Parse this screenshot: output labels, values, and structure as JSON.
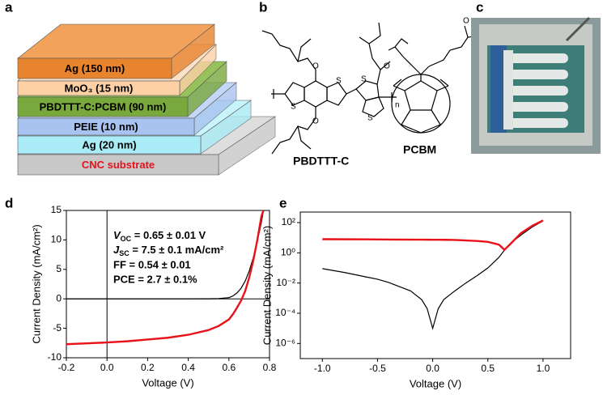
{
  "panel_labels": [
    "a",
    "b",
    "c",
    "d",
    "e"
  ],
  "layers": [
    {
      "label": "Ag (150 nm)",
      "color": "#e8832e",
      "top": "#f2a25a"
    },
    {
      "label": "MoO₃ (15 nm)",
      "color": "#fdd0a6",
      "top": "#fde2c8"
    },
    {
      "label": "PBDTTT-C:PCBM (90 nm)",
      "color": "#79a83c",
      "top": "#95c25a"
    },
    {
      "label": "PEIE (10 nm)",
      "color": "#a8c3f0",
      "top": "#c4d7f6"
    },
    {
      "label": "Ag (20 nm)",
      "color": "#a9ebf6",
      "top": "#c9f4fb"
    },
    {
      "label": "CNC substrate",
      "color": "#c8c8c8",
      "top": "#dedede",
      "text_color": "#e8121b"
    }
  ],
  "molecules": {
    "polymer": "PBDTTT-C",
    "fullerene": "PCBM",
    "repeat": "n",
    "atoms": [
      "O",
      "O",
      "O",
      "O",
      "O",
      "S",
      "S",
      "S",
      "S"
    ]
  },
  "chart_data": [
    {
      "type": "line",
      "ylabel": "Current Density (mA/cm²)",
      "xlabel": "Voltage (V)",
      "xlim": [
        -0.2,
        0.8
      ],
      "xticks": [
        -0.2,
        {
          "value": 0,
          "label": "0.0"
        },
        0.2,
        0.4,
        0.6,
        0.8
      ],
      "ylim": [
        -10,
        15
      ],
      "yticks": [
        -10,
        -5,
        0,
        5,
        10,
        15
      ],
      "zero_lines": true,
      "annotations": [
        {
          "main": "V",
          "sub": "OC",
          "rest": " = 0.65 ± 0.01 V"
        },
        {
          "main": "J",
          "sub": "SC",
          "rest": " = 7.5 ± 0.1 mA/cm²"
        },
        "FF = 0.54 ± 0.01",
        "PCE = 2.7 ± 0.1%"
      ],
      "x": [
        -0.2,
        -0.1,
        0,
        0.1,
        0.2,
        0.3,
        0.4,
        0.5,
        0.55,
        0.6,
        0.62,
        0.64,
        0.66,
        0.68,
        0.7,
        0.72,
        0.74,
        0.76,
        0.77
      ],
      "series": [
        {
          "color": "#000000",
          "width": 1.2,
          "values": [
            0,
            0,
            0,
            0,
            0,
            0,
            0,
            0.01,
            0.05,
            0.2,
            0.5,
            1,
            1.8,
            3,
            4.7,
            7,
            9.8,
            13,
            15
          ]
        },
        {
          "color": "#e8121b",
          "width": 2.4,
          "values": [
            -7.7,
            -7.55,
            -7.4,
            -7.2,
            -6.9,
            -6.6,
            -6.1,
            -5.3,
            -4.6,
            -3.5,
            -2.6,
            -1.5,
            -0.3,
            1.3,
            3.6,
            6.5,
            10,
            14,
            15
          ]
        }
      ]
    },
    {
      "type": "line",
      "yscale": "log",
      "ylabel": "Current Density (mA/cm²)",
      "xlabel": "Voltage (V)",
      "xlim": [
        -1.2,
        1.25
      ],
      "xticks": [
        {
          "value": -1,
          "label": "-1.0"
        },
        -0.5,
        {
          "value": 0,
          "label": "0.0"
        },
        0.5,
        {
          "value": 1,
          "label": "1.0"
        }
      ],
      "ylim": [
        1e-07,
        500
      ],
      "yticks": [
        {
          "value": 1e-06,
          "label": "10⁻⁶"
        },
        {
          "value": 0.0001,
          "label": "10⁻⁴"
        },
        {
          "value": 0.01,
          "label": "10⁻²"
        },
        {
          "value": 1,
          "label": "10⁰"
        },
        {
          "value": 100,
          "label": "10²"
        }
      ],
      "x": [
        -1,
        -0.8,
        -0.6,
        -0.5,
        -0.4,
        -0.2,
        -0.1,
        -0.05,
        0,
        0.05,
        0.1,
        0.2,
        0.3,
        0.4,
        0.5,
        0.6,
        0.65,
        0.7,
        0.8,
        0.9,
        1.0
      ],
      "series": [
        {
          "color": "#000000",
          "width": 1.2,
          "values": [
            0.09,
            0.05,
            0.025,
            0.018,
            0.011,
            0.003,
            0.0008,
            0.0002,
            1e-05,
            0.0002,
            0.0008,
            0.003,
            0.01,
            0.03,
            0.1,
            0.5,
            1.5,
            4,
            15,
            50,
            130
          ]
        },
        {
          "color": "#e8121b",
          "width": 2.4,
          "values": [
            8,
            7.9,
            7.8,
            7.7,
            7.6,
            7.5,
            7.45,
            7.42,
            7.4,
            7.35,
            7.3,
            7.1,
            6.6,
            6.1,
            5.3,
            3.5,
            1.6,
            3.6,
            20,
            60,
            140
          ]
        }
      ]
    }
  ]
}
